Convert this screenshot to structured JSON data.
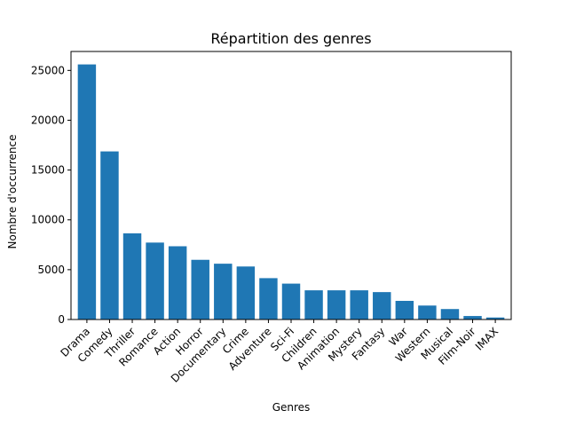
{
  "chart_data": {
    "type": "bar",
    "title": "Répartition des genres",
    "xlabel": "Genres",
    "ylabel": "Nombre d'occurrence",
    "categories": [
      "Drama",
      "Comedy",
      "Thriller",
      "Romance",
      "Action",
      "Horror",
      "Documentary",
      "Crime",
      "Adventure",
      "Sci-Fi",
      "Children",
      "Animation",
      "Mystery",
      "Fantasy",
      "War",
      "Western",
      "Musical",
      "Film-Noir",
      "IMAX"
    ],
    "values": [
      25600,
      16870,
      8650,
      7720,
      7350,
      5990,
      5600,
      5320,
      4150,
      3600,
      2930,
      2930,
      2930,
      2750,
      1870,
      1400,
      1050,
      350,
      200
    ],
    "ylim": [
      0,
      26900
    ],
    "yticks": [
      0,
      5000,
      10000,
      15000,
      20000,
      25000
    ],
    "bar_color": "#1f77b4",
    "grid": false,
    "legend": "none"
  }
}
